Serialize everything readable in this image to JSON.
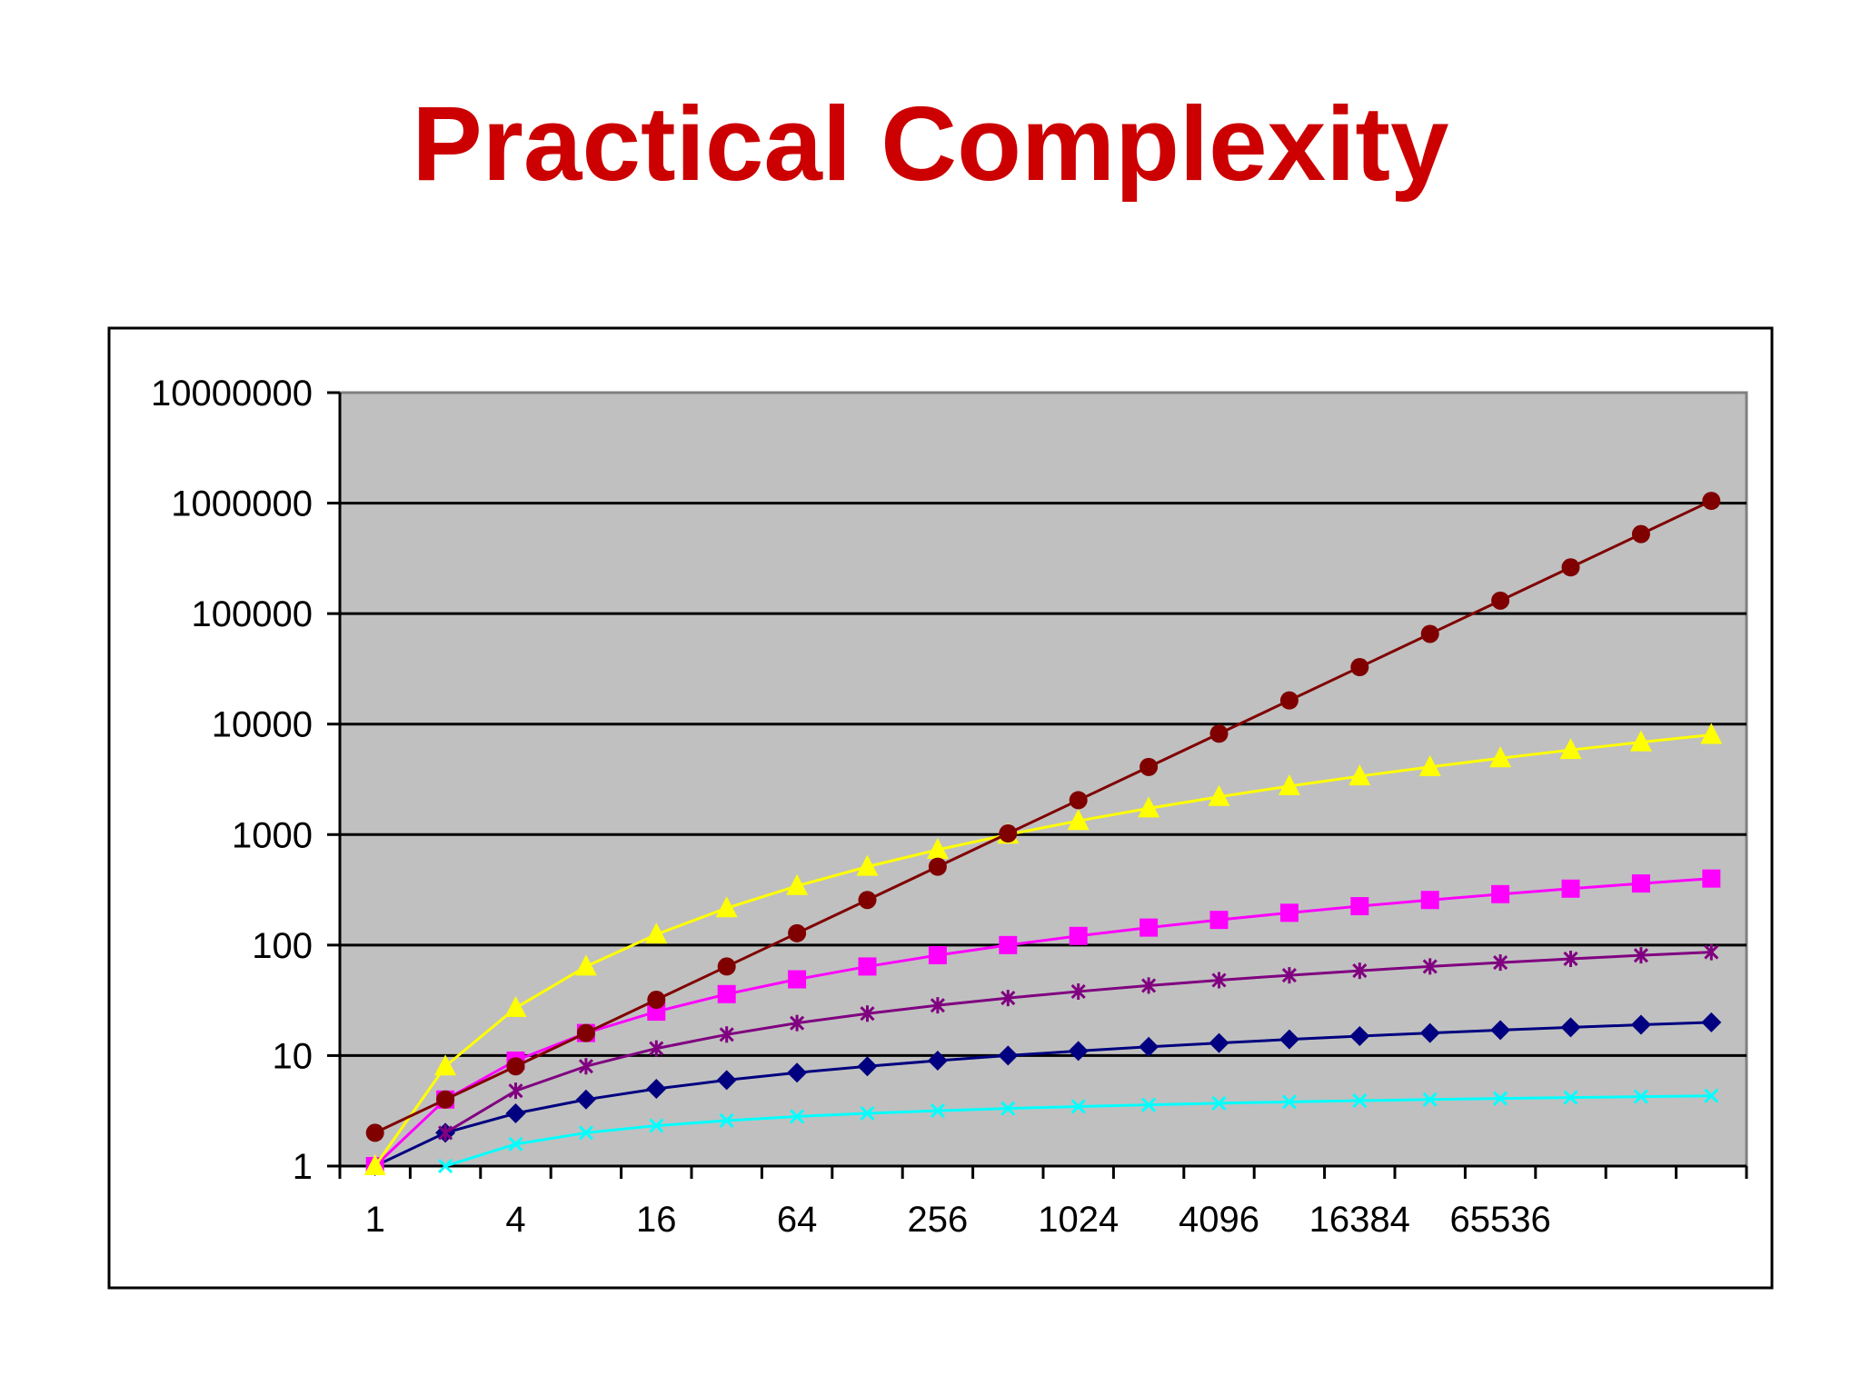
{
  "slide": {
    "title": "Practical Complexity"
  },
  "chart_data": {
    "type": "line",
    "title": "",
    "xlabel": "",
    "ylabel": "",
    "y_scale": "log",
    "ylim": [
      1,
      10000000
    ],
    "y_tick_labels": [
      "1",
      "10",
      "100",
      "1000",
      "10000",
      "100000",
      "1000000",
      "10000000"
    ],
    "x_tick_labels": [
      "1",
      "4",
      "16",
      "64",
      "256",
      "1024",
      "4096",
      "16384",
      "65536"
    ],
    "x": [
      1,
      2,
      4,
      8,
      16,
      32,
      64,
      128,
      256,
      512,
      1024,
      2048,
      4096,
      8192,
      16384,
      32768,
      65536,
      131072,
      262144,
      524288
    ],
    "grid": true,
    "legend": "none",
    "plot_background": "#c0c0c0",
    "series": [
      {
        "color": "#800000",
        "marker": "circle",
        "values": [
          2,
          4,
          8,
          16,
          32,
          64,
          128,
          256,
          512,
          1024,
          2048,
          4096,
          8192,
          16384,
          32768,
          65536,
          131072,
          262144,
          524288,
          1048576
        ]
      },
      {
        "color": "#ffff00",
        "marker": "triangle",
        "values": [
          1,
          8,
          27,
          64,
          125,
          216,
          343,
          512,
          729,
          1000,
          1331,
          1728,
          2197,
          2744,
          3375,
          4096,
          4913,
          5832,
          6859,
          8000
        ]
      },
      {
        "color": "#ff00ff",
        "marker": "square",
        "values": [
          1,
          4,
          9,
          16,
          25,
          36,
          49,
          64,
          81,
          100,
          121,
          144,
          169,
          196,
          225,
          256,
          289,
          324,
          361,
          400
        ]
      },
      {
        "color": "#800080",
        "marker": "asterisk",
        "values": [
          0,
          2,
          4.8,
          8,
          11.6,
          15.5,
          19.7,
          24,
          28.5,
          33.2,
          38,
          43,
          48.1,
          53.3,
          58.6,
          64,
          69.5,
          75.1,
          80.7,
          86.4
        ]
      },
      {
        "color": "#000080",
        "marker": "diamond",
        "values": [
          1,
          2,
          3,
          4,
          5,
          6,
          7,
          8,
          9,
          10,
          11,
          12,
          13,
          14,
          15,
          16,
          17,
          18,
          19,
          20
        ]
      },
      {
        "color": "#00ffff",
        "marker": "x",
        "values": [
          0,
          1,
          1.58,
          2,
          2.32,
          2.58,
          2.81,
          3,
          3.17,
          3.32,
          3.46,
          3.58,
          3.7,
          3.81,
          3.91,
          4,
          4.09,
          4.17,
          4.25,
          4.32
        ]
      }
    ]
  }
}
